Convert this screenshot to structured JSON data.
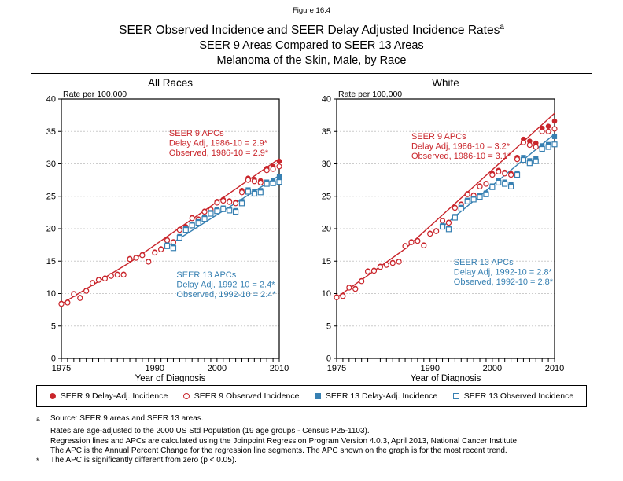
{
  "figure_label": "Figure 16.4",
  "title_line1": "SEER Observed Incidence and SEER Delay Adjusted Incidence Rates",
  "title_superscript": "a",
  "title_line2": "SEER 9 Areas Compared to SEER 13 Areas",
  "title_line3": "Melanoma of the Skin, Male, by Race",
  "colors": {
    "seer9": "#C9252B",
    "seer13": "#3780B2",
    "grid": "#CCCCCC",
    "frame": "#000000"
  },
  "legend": {
    "items": [
      {
        "label": "SEER 9 Delay-Adj. Incidence",
        "marker": "filled-circle",
        "color": "seer9"
      },
      {
        "label": "SEER 9 Observed Incidence",
        "marker": "open-circle",
        "color": "seer9"
      },
      {
        "label": "SEER 13 Delay-Adj. Incidence",
        "marker": "filled-square",
        "color": "seer13"
      },
      {
        "label": "SEER 13 Observed Incidence",
        "marker": "open-square",
        "color": "seer13"
      }
    ]
  },
  "footnotes": [
    {
      "marker": "a",
      "text": "Source: SEER 9 areas and SEER 13 areas."
    },
    {
      "marker": "",
      "text": "Rates are age-adjusted to the 2000 US Std Population (19 age groups - Census P25-1103)."
    },
    {
      "marker": "",
      "text": "Regression lines and APCs are calculated using the Joinpoint Regression Program Version 4.0.3, April 2013, National Cancer Institute."
    },
    {
      "marker": "",
      "text": "The APC is the Annual Percent Change for the regression line segments. The APC shown on the graph is for the most recent trend."
    },
    {
      "marker": "*",
      "text": "The APC is significantly different from zero (p < 0.05)."
    }
  ],
  "chart_data": [
    {
      "type": "scatter",
      "title": "All Races",
      "ylabel": "Rate per 100,000",
      "xlabel": "Year of Diagnosis",
      "xlim": [
        1975,
        2010
      ],
      "ylim": [
        0,
        40
      ],
      "ytick_interval": 5,
      "xticks_labeled": [
        1975,
        1990,
        2000,
        2010
      ],
      "grid": "dotted horizontal",
      "series": [
        {
          "name": "SEER 9 Delay-Adj. Incidence",
          "color": "seer9",
          "marker": "filled-circle",
          "x_start": 1975,
          "values": [
            8.5,
            8.7,
            10.0,
            9.4,
            10.5,
            11.7,
            12.2,
            12.4,
            12.8,
            13.0,
            13.0,
            15.4,
            15.6,
            16.0,
            15.0,
            16.4,
            16.9,
            18.3,
            18.0,
            19.9,
            20.3,
            21.7,
            21.5,
            22.7,
            23.0,
            24.2,
            24.5,
            24.3,
            24.1,
            25.9,
            27.8,
            27.6,
            27.4,
            29.3,
            29.6,
            30.4
          ]
        },
        {
          "name": "SEER 9 Observed Incidence",
          "color": "seer9",
          "marker": "open-circle",
          "x_start": 1975,
          "values": [
            8.4,
            8.6,
            9.9,
            9.3,
            10.4,
            11.6,
            12.1,
            12.3,
            12.7,
            12.9,
            12.9,
            15.3,
            15.5,
            15.9,
            14.9,
            16.3,
            16.8,
            18.2,
            17.9,
            19.8,
            20.2,
            21.6,
            21.4,
            22.6,
            22.9,
            24.0,
            24.3,
            24.1,
            23.9,
            25.6,
            27.5,
            27.3,
            27.1,
            29.0,
            29.2,
            29.6
          ]
        },
        {
          "name": "SEER 13 Delay-Adj. Incidence",
          "color": "seer13",
          "marker": "filled-square",
          "x_start": 1992,
          "values": [
            17.5,
            17.2,
            18.8,
            20.0,
            20.7,
            21.1,
            21.7,
            22.5,
            22.9,
            23.2,
            23.0,
            22.8,
            24.2,
            26.0,
            25.7,
            25.9,
            27.2,
            27.4,
            28.0
          ]
        },
        {
          "name": "SEER 13 Observed Incidence",
          "color": "seer13",
          "marker": "open-square",
          "x_start": 1992,
          "values": [
            17.3,
            17.0,
            18.6,
            19.8,
            20.5,
            20.9,
            21.5,
            22.3,
            22.7,
            23.0,
            22.8,
            22.6,
            23.9,
            25.7,
            25.4,
            25.6,
            26.9,
            27.0,
            27.2
          ]
        }
      ],
      "trend_lines": [
        {
          "color": "seer9",
          "points": [
            [
              1975,
              8.4
            ],
            [
              1986,
              14.8
            ],
            [
              2010,
              30.8
            ]
          ]
        },
        {
          "color": "seer13",
          "points": [
            [
              1992,
              17.3
            ],
            [
              2010,
              28.2
            ]
          ]
        }
      ],
      "annotations": [
        {
          "color": "seer9",
          "x": 1992.3,
          "y": 34.3,
          "lines": [
            "SEER 9 APCs",
            "Delay Adj, 1986-10 = 2.9*",
            "Observed, 1986-10 = 2.9*"
          ]
        },
        {
          "color": "seer13",
          "x": 1993.5,
          "y": 12.5,
          "lines": [
            "SEER 13 APCs",
            "Delay Adj, 1992-10 = 2.4*",
            "Observed, 1992-10 = 2.4*"
          ]
        }
      ]
    },
    {
      "type": "scatter",
      "title": "White",
      "ylabel": "Rate per 100,000",
      "xlabel": "Year of Diagnosis",
      "xlim": [
        1975,
        2010
      ],
      "ylim": [
        0,
        40
      ],
      "ytick_interval": 5,
      "xticks_labeled": [
        1975,
        1990,
        2000,
        2010
      ],
      "grid": "dotted horizontal",
      "series": [
        {
          "name": "SEER 9 Delay-Adj. Incidence",
          "color": "seer9",
          "marker": "filled-circle",
          "x_start": 1975,
          "values": [
            9.5,
            9.7,
            11.0,
            10.8,
            12.0,
            13.5,
            13.6,
            14.2,
            14.5,
            14.8,
            15.0,
            17.4,
            18.0,
            18.2,
            17.5,
            19.3,
            19.7,
            21.3,
            21.0,
            23.3,
            23.8,
            25.4,
            25.2,
            26.6,
            27.0,
            28.5,
            29.0,
            28.7,
            28.5,
            31.0,
            33.8,
            33.5,
            33.2,
            35.5,
            35.8,
            36.6
          ]
        },
        {
          "name": "SEER 9 Observed Incidence",
          "color": "seer9",
          "marker": "open-circle",
          "x_start": 1975,
          "values": [
            9.4,
            9.6,
            10.9,
            10.7,
            11.9,
            13.4,
            13.5,
            14.1,
            14.4,
            14.7,
            14.9,
            17.3,
            17.9,
            18.1,
            17.4,
            19.2,
            19.6,
            21.2,
            20.9,
            23.2,
            23.7,
            25.3,
            25.1,
            26.5,
            26.9,
            28.3,
            28.8,
            28.5,
            28.3,
            30.7,
            33.3,
            32.9,
            32.6,
            35.0,
            35.0,
            35.4
          ]
        },
        {
          "name": "SEER 13 Delay-Adj. Incidence",
          "color": "seer13",
          "marker": "filled-square",
          "x_start": 1992,
          "values": [
            20.5,
            20.1,
            21.9,
            23.3,
            24.4,
            24.7,
            25.1,
            25.5,
            26.6,
            27.4,
            27.2,
            26.8,
            28.6,
            31.0,
            30.5,
            30.8,
            32.8,
            33.0,
            34.2
          ]
        },
        {
          "name": "SEER 13 Observed Incidence",
          "color": "seer13",
          "marker": "open-square",
          "x_start": 1992,
          "values": [
            20.3,
            19.9,
            21.7,
            23.1,
            24.2,
            24.5,
            24.9,
            25.3,
            26.4,
            27.1,
            26.9,
            26.5,
            28.3,
            30.6,
            30.1,
            30.4,
            32.3,
            32.6,
            33.0
          ]
        }
      ],
      "trend_lines": [
        {
          "color": "seer9",
          "points": [
            [
              1975,
              9.4
            ],
            [
              1986,
              16.9
            ],
            [
              2010,
              37.8
            ]
          ]
        },
        {
          "color": "seer13",
          "points": [
            [
              1992,
              20.3
            ],
            [
              2010,
              34.6
            ]
          ]
        }
      ],
      "annotations": [
        {
          "color": "seer9",
          "x": 1987.0,
          "y": 33.8,
          "lines": [
            "SEER 9 APCs",
            "Delay Adj, 1986-10 = 3.2*",
            "Observed, 1986-10 = 3.1*"
          ]
        },
        {
          "color": "seer13",
          "x": 1993.8,
          "y": 14.4,
          "lines": [
            "SEER 13 APCs",
            "Delay Adj, 1992-10 = 2.8*",
            "Observed, 1992-10 = 2.8*"
          ]
        }
      ]
    }
  ]
}
